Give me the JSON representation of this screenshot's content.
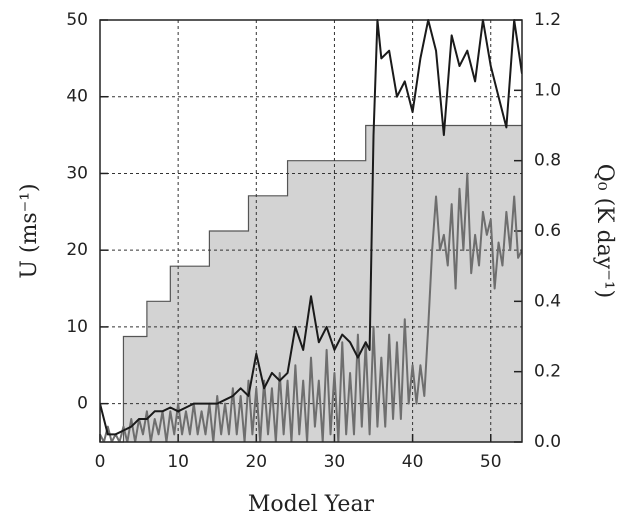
{
  "chart_data": {
    "type": "line",
    "xlabel": "Model Year",
    "ylabel": "U (ms⁻¹)",
    "y2label": "Q₀ (K day⁻¹)",
    "xlim": [
      0,
      54
    ],
    "ylim": [
      -5,
      50
    ],
    "y2lim": [
      0,
      1.2
    ],
    "xticks": [
      0,
      10,
      20,
      30,
      40,
      50
    ],
    "yticks": [
      0,
      10,
      20,
      30,
      40,
      50
    ],
    "y2ticks": [
      {
        "value": 0,
        "label": "0.0"
      },
      0.2,
      0.4,
      0.6,
      0.8,
      {
        "value": 1,
        "label": "1.0"
      },
      1.2
    ],
    "grid": true,
    "series": [
      {
        "color": "#d3d3d3",
        "axis": "y2",
        "step": true,
        "x": [
          0,
          3,
          6,
          9,
          14,
          19,
          24,
          34,
          54
        ],
        "values": [
          0,
          0.3,
          0.4,
          0.5,
          0.6,
          0.7,
          0.8,
          0.9,
          0.9
        ]
      },
      {
        "color": "#6e6e6e",
        "x": [
          0,
          0.5,
          1,
          1.5,
          2,
          2.5,
          3,
          3.5,
          4,
          4.5,
          5,
          5.5,
          6,
          6.5,
          7,
          7.5,
          8,
          8.5,
          9,
          9.5,
          10,
          10.5,
          11,
          11.5,
          12,
          12.5,
          13,
          13.5,
          14,
          14.5,
          15,
          15.5,
          16,
          16.5,
          17,
          17.5,
          18,
          18.5,
          19,
          19.5,
          20,
          20.5,
          21,
          21.5,
          22,
          22.5,
          23,
          23.5,
          24,
          24.5,
          25,
          25.5,
          26,
          26.5,
          27,
          27.5,
          28,
          28.5,
          29,
          29.5,
          30,
          30.5,
          31,
          31.5,
          32,
          32.5,
          33,
          33.5,
          34,
          34.5,
          35,
          35.5,
          36,
          36.5,
          37,
          37.5,
          38,
          38.5,
          39,
          39.5,
          40,
          40.5,
          41,
          41.5,
          42,
          42.5,
          43,
          43.5,
          44,
          44.5,
          45,
          45.5,
          46,
          46.5,
          47,
          47.5,
          48,
          48.5,
          49,
          49.5,
          50,
          50.5,
          51,
          51.5,
          52,
          52.5,
          53,
          53.5,
          54
        ],
        "values": [
          -4,
          -5,
          -3,
          -5,
          -4,
          -5,
          -3,
          -5,
          -2,
          -5,
          -2,
          -4,
          -1,
          -5,
          -2,
          -4,
          -1,
          -5,
          -1,
          -4,
          0,
          -4,
          -1,
          -4,
          0,
          -4,
          -1,
          -4,
          0,
          -5,
          1,
          -4,
          0,
          -4,
          2,
          -4,
          1,
          -5,
          3,
          -4,
          2,
          -5,
          3,
          -4,
          2,
          -5,
          4,
          -4,
          3,
          -5,
          5,
          -4,
          3,
          -5,
          6,
          -3,
          3,
          -5,
          7,
          -4,
          4,
          -5,
          8,
          -4,
          4,
          -4,
          9,
          -3,
          8,
          -4,
          10,
          -3,
          6,
          -3,
          9,
          -2,
          8,
          -2,
          11,
          0,
          5,
          0,
          5,
          1,
          10,
          20,
          27,
          20,
          22,
          18,
          26,
          15,
          28,
          20,
          30,
          17,
          22,
          18,
          25,
          22,
          24,
          15,
          21,
          18,
          25,
          20,
          27,
          19,
          20
        ]
      },
      {
        "color": "#1a1a1a",
        "x": [
          0,
          1,
          2,
          3,
          4,
          5,
          6,
          7,
          8,
          9,
          10,
          11,
          12,
          13,
          14,
          15,
          16,
          17,
          18,
          19,
          20,
          21,
          22,
          23,
          24,
          25,
          26,
          27,
          28,
          29,
          30,
          31,
          32,
          33,
          34,
          34.5,
          35,
          35.5,
          36,
          37,
          38,
          39,
          40,
          41,
          42,
          43,
          44,
          45,
          46,
          47,
          48,
          49,
          50,
          51,
          52,
          53,
          54
        ],
        "values": [
          0,
          -4,
          -4,
          -3.5,
          -3,
          -2,
          -2,
          -1,
          -1,
          -0.5,
          -1,
          -0.5,
          0,
          0,
          0,
          0,
          0.5,
          1,
          2,
          1,
          6.5,
          2,
          4,
          3,
          4,
          10,
          7,
          14,
          8,
          10,
          7,
          9,
          8,
          6,
          8,
          7,
          35,
          50,
          45,
          46,
          40,
          42,
          38,
          45,
          50,
          46,
          35,
          48,
          44,
          46,
          42,
          50,
          44,
          40,
          36,
          50,
          43
        ]
      }
    ]
  }
}
